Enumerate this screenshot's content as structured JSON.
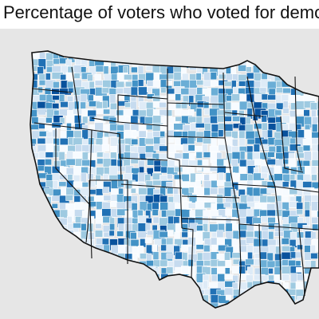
{
  "title": "Percentage of voters who voted for democrats",
  "map": {
    "type": "choropleth",
    "region": "contiguous United States",
    "unit": "county",
    "fill_scale": [
      "#f7fbff",
      "#deebf7",
      "#c6dbef",
      "#9ecae1",
      "#6baed6",
      "#4292c6",
      "#2171b5",
      "#08519c"
    ],
    "state_border_color": "#111111",
    "county_border_color": "#ffffff",
    "background_color": "#e6e6e6"
  }
}
